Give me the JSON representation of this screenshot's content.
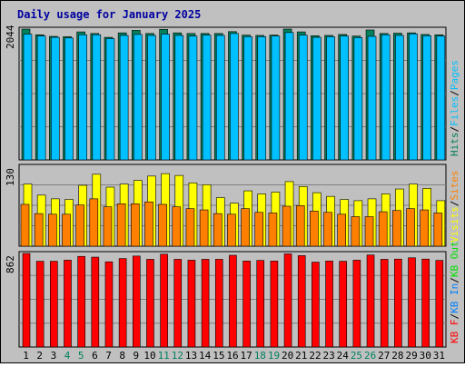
{
  "colors": {
    "background": "#c0c0c0",
    "panel": "#c0c0c0",
    "grid": "#808080",
    "title": "#0000a0",
    "hits": "#00805c",
    "files": "#00c0ff",
    "pages": "#00c0ff",
    "visits": "#ffff00",
    "sites": "#ff8000",
    "kbf": "#ff0000",
    "kbin": "#0080ff",
    "kbout": "#00e000",
    "weekend_label": "#00805c",
    "weekday_label": "#000000"
  },
  "chart_data": [
    {
      "type": "bar",
      "title": "Daily usage for January 2025",
      "panel": "requests",
      "ymax_label": "2044",
      "ymax": 2044,
      "categories": [
        "1",
        "2",
        "3",
        "4",
        "5",
        "6",
        "7",
        "8",
        "9",
        "10",
        "11",
        "12",
        "13",
        "14",
        "15",
        "16",
        "17",
        "18",
        "19",
        "20",
        "21",
        "22",
        "23",
        "24",
        "25",
        "26",
        "27",
        "28",
        "29",
        "30",
        "31"
      ],
      "weekend_days": [
        4,
        5,
        11,
        12,
        18,
        19,
        25,
        26
      ],
      "legend": [
        {
          "text": "Hits",
          "color": "#00805c"
        },
        {
          "text": "/",
          "color": "#000000"
        },
        {
          "text": "Files",
          "color": "#00c0ff"
        },
        {
          "text": "/",
          "color": "#000000"
        },
        {
          "text": "Pages",
          "color": "#00c0ff"
        }
      ],
      "series": [
        {
          "name": "Hits",
          "values": [
            2044,
            1955,
            1930,
            1925,
            2000,
            1975,
            1915,
            1985,
            2024,
            1975,
            2040,
            1985,
            1975,
            1975,
            1975,
            2004,
            1950,
            1945,
            1950,
            2044,
            2000,
            1940,
            1945,
            1960,
            1935,
            2030,
            1975,
            1980,
            1985,
            1960,
            1955
          ]
        },
        {
          "name": "Files",
          "values": [
            1965,
            1935,
            1915,
            1905,
            1955,
            1955,
            1895,
            1945,
            1960,
            1945,
            1965,
            1945,
            1935,
            1950,
            1945,
            1975,
            1925,
            1925,
            1935,
            1990,
            1950,
            1915,
            1925,
            1935,
            1910,
            1930,
            1955,
            1945,
            1970,
            1940,
            1935
          ]
        }
      ]
    },
    {
      "type": "bar",
      "panel": "visitors",
      "ymax_label": "130",
      "ymax": 130,
      "legend": [
        {
          "text": "Visits",
          "color": "#ffff00"
        },
        {
          "text": "/",
          "color": "#000000"
        },
        {
          "text": "Sites",
          "color": "#ff8000"
        }
      ],
      "series": [
        {
          "name": "Visits",
          "values": [
            101,
            83,
            77,
            76,
            99,
            117,
            96,
            101,
            107,
            114,
            118,
            115,
            103,
            100,
            79,
            70,
            90,
            85,
            88,
            105,
            97,
            87,
            81,
            76,
            74,
            77,
            85,
            93,
            101,
            94,
            74
          ]
        },
        {
          "name": "Sites",
          "values": [
            68,
            53,
            52,
            52,
            67,
            77,
            64,
            69,
            69,
            72,
            68,
            64,
            61,
            59,
            53,
            52,
            61,
            55,
            54,
            65,
            66,
            57,
            55,
            52,
            48,
            48,
            56,
            58,
            61,
            59,
            54
          ]
        }
      ]
    },
    {
      "type": "bar",
      "panel": "traffic",
      "ymax_label": "862",
      "ymax": 862,
      "legend": [
        {
          "text": "KB F",
          "color": "#ff0000"
        },
        {
          "text": "/",
          "color": "#000000"
        },
        {
          "text": "KB In",
          "color": "#0080ff"
        },
        {
          "text": "/",
          "color": "#000000"
        },
        {
          "text": "KB Out",
          "color": "#00e000"
        }
      ],
      "series": [
        {
          "name": "KB F",
          "values": [
            862,
            790,
            790,
            800,
            835,
            828,
            785,
            815,
            838,
            808,
            855,
            808,
            800,
            808,
            808,
            845,
            792,
            798,
            792,
            858,
            842,
            782,
            792,
            790,
            800,
            848,
            808,
            810,
            822,
            810,
            798
          ]
        }
      ]
    }
  ]
}
